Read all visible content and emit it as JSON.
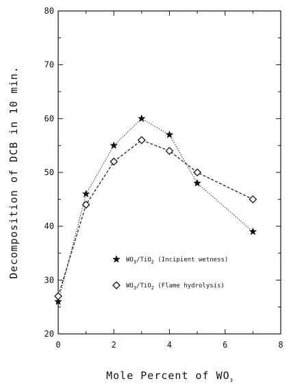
{
  "chart_data": {
    "type": "line",
    "xlabel": "Mole Percent of WO",
    "xlabel_subscript": "3",
    "ylabel": "Decomposition of DCB in 10 min.",
    "xlim": [
      0,
      8
    ],
    "ylim": [
      20,
      80
    ],
    "x_ticks": [
      0,
      2,
      4,
      6,
      8
    ],
    "y_ticks": [
      20,
      30,
      40,
      50,
      60,
      70,
      80
    ],
    "grid": false,
    "legend_position": "center-right",
    "series": [
      {
        "name": "WO3/TiO2 (Incipient wetness)",
        "legend": {
          "prefix": "WO",
          "sub1": "3",
          "mid": "/TiO",
          "sub2": "2",
          "suffix": " (Incipient wetness)"
        },
        "marker": "star",
        "line_style": "dotted",
        "x": [
          0,
          1,
          2,
          3,
          4,
          5,
          7
        ],
        "y": [
          26,
          46,
          55,
          60,
          57,
          48,
          39
        ]
      },
      {
        "name": "WO3/TiO2 (Flame hydrolysis)",
        "legend": {
          "prefix": "WO",
          "sub1": "3",
          "mid": "/TiO",
          "sub2": "2",
          "suffix": " (Flame hydrolysis)"
        },
        "marker": "diamond",
        "line_style": "dashed",
        "x": [
          0,
          1,
          2,
          3,
          4,
          5,
          7
        ],
        "y": [
          27,
          44,
          52,
          56,
          54,
          50,
          45
        ]
      }
    ]
  }
}
